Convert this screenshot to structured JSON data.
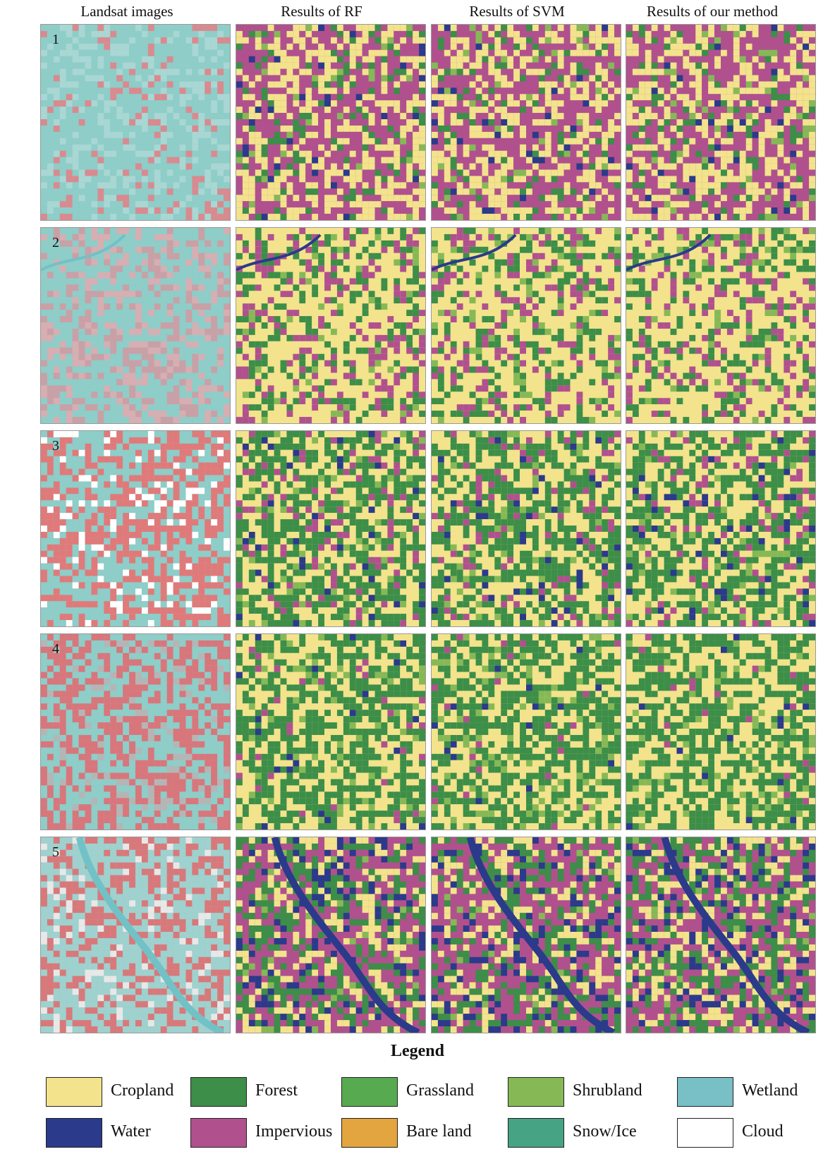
{
  "headers": [
    "Landsat images",
    "Results of RF",
    "Results of  SVM",
    "Results of our method"
  ],
  "rows": [
    "1",
    "2",
    "3",
    "4",
    "5"
  ],
  "legend": {
    "title": "Legend",
    "items": [
      {
        "label": "Cropland",
        "color": "#f3e38c"
      },
      {
        "label": "Forest",
        "color": "#3c8e48"
      },
      {
        "label": "Grassland",
        "color": "#58aa50"
      },
      {
        "label": "Shrubland",
        "color": "#86b956"
      },
      {
        "label": "Wetland",
        "color": "#78bfc6"
      },
      {
        "label": "Water",
        "color": "#2b3a8a"
      },
      {
        "label": "Impervious",
        "color": "#b0518e"
      },
      {
        "label": "Bare land",
        "color": "#e3a53f"
      },
      {
        "label": "Snow/Ice",
        "color": "#46a383"
      },
      {
        "label": "Cloud",
        "color": "#ffffff"
      }
    ]
  }
}
